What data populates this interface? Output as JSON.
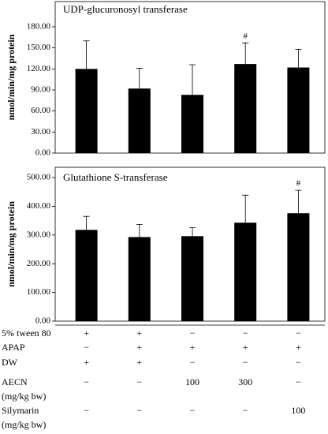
{
  "chart_data": [
    {
      "type": "bar",
      "title": "UDP-glucuronosyl transferase",
      "y_label": "nmol/min/mg protein",
      "values": [
        120,
        92,
        83,
        127,
        122
      ],
      "errors": [
        40,
        29,
        43,
        30,
        26
      ],
      "markers": [
        null,
        null,
        null,
        "#",
        null
      ],
      "color": "#000000",
      "ylim": [
        0,
        216
      ],
      "yticks": [
        {
          "value": 0,
          "label": "0.00"
        },
        {
          "value": 30,
          "label": "30.00"
        },
        {
          "value": 60,
          "label": "60.00"
        },
        {
          "value": 90,
          "label": "90.00"
        },
        {
          "value": 120,
          "label": "120.00"
        },
        {
          "value": 150,
          "label": "150.00"
        },
        {
          "value": 180,
          "label": "180.00"
        }
      ]
    },
    {
      "type": "bar",
      "title": "Glutathione S-transferase",
      "y_label": "nmol/min/mg protein",
      "values": [
        318,
        293,
        296,
        343,
        376
      ],
      "errors": [
        47,
        44,
        30,
        96,
        80
      ],
      "markers": [
        null,
        null,
        null,
        null,
        "#"
      ],
      "color": "#000000",
      "ylim": [
        0,
        536
      ],
      "yticks": [
        {
          "value": 0,
          "label": "0.00"
        },
        {
          "value": 100,
          "label": "100.00"
        },
        {
          "value": 200,
          "label": "200.00"
        },
        {
          "value": 300,
          "label": "300.00"
        },
        {
          "value": 400,
          "label": "400.00"
        },
        {
          "value": 500,
          "label": "500.00"
        }
      ]
    }
  ],
  "table": {
    "rows": [
      {
        "label": [
          "5% tween 80"
        ],
        "cells": [
          "+",
          "+",
          "−",
          "−",
          "−"
        ]
      },
      {
        "label": [
          "APAP"
        ],
        "cells": [
          "−",
          "+",
          "+",
          "+",
          "+"
        ]
      },
      {
        "label": [
          "DW"
        ],
        "cells": [
          "+",
          "+",
          "−",
          "−",
          "−"
        ]
      },
      {
        "label": [
          "AECN",
          "(mg/kg bw)"
        ],
        "cells": [
          "−",
          "−",
          "100",
          "300",
          "−"
        ]
      },
      {
        "label": [
          "Silymarin",
          "(mg/kg bw)"
        ],
        "cells": [
          "−",
          "−",
          "−",
          "−",
          "100"
        ]
      }
    ]
  }
}
